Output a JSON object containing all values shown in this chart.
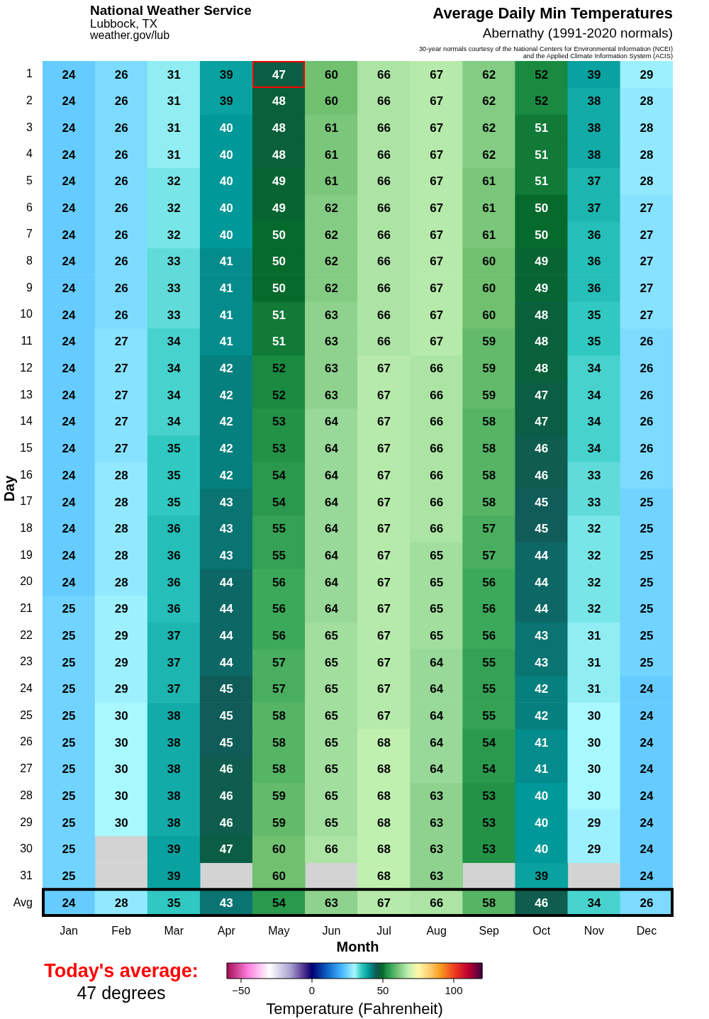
{
  "chart_data": {
    "type": "heatmap",
    "title": "Average Daily Min Temperatures",
    "subtitle": "Abernathy (1991-2020 normals)",
    "xlabel": "Month",
    "ylabel": "Day",
    "clabel": "Temperature (Fahrenheit)",
    "categories": [
      "Jan",
      "Feb",
      "Mar",
      "Apr",
      "May",
      "Jun",
      "Jul",
      "Aug",
      "Sep",
      "Oct",
      "Nov",
      "Dec"
    ],
    "y_categories": [
      "1",
      "2",
      "3",
      "4",
      "5",
      "6",
      "7",
      "8",
      "9",
      "10",
      "11",
      "12",
      "13",
      "14",
      "15",
      "16",
      "17",
      "18",
      "19",
      "20",
      "21",
      "22",
      "23",
      "24",
      "25",
      "26",
      "27",
      "28",
      "29",
      "30",
      "31",
      "Avg"
    ],
    "cells": [
      [
        24,
        26,
        31,
        39,
        47,
        60,
        66,
        67,
        62,
        52,
        39,
        29
      ],
      [
        24,
        26,
        31,
        39,
        48,
        60,
        66,
        67,
        62,
        52,
        38,
        28
      ],
      [
        24,
        26,
        31,
        40,
        48,
        61,
        66,
        67,
        62,
        51,
        38,
        28
      ],
      [
        24,
        26,
        31,
        40,
        48,
        61,
        66,
        67,
        62,
        51,
        38,
        28
      ],
      [
        24,
        26,
        32,
        40,
        49,
        61,
        66,
        67,
        61,
        51,
        37,
        28
      ],
      [
        24,
        26,
        32,
        40,
        49,
        62,
        66,
        67,
        61,
        50,
        37,
        27
      ],
      [
        24,
        26,
        32,
        40,
        50,
        62,
        66,
        67,
        61,
        50,
        36,
        27
      ],
      [
        24,
        26,
        33,
        41,
        50,
        62,
        66,
        67,
        60,
        49,
        36,
        27
      ],
      [
        24,
        26,
        33,
        41,
        50,
        62,
        66,
        67,
        60,
        49,
        36,
        27
      ],
      [
        24,
        26,
        33,
        41,
        51,
        63,
        66,
        67,
        60,
        48,
        35,
        27
      ],
      [
        24,
        27,
        34,
        41,
        51,
        63,
        66,
        67,
        59,
        48,
        35,
        26
      ],
      [
        24,
        27,
        34,
        42,
        52,
        63,
        67,
        66,
        59,
        48,
        34,
        26
      ],
      [
        24,
        27,
        34,
        42,
        52,
        63,
        67,
        66,
        59,
        47,
        34,
        26
      ],
      [
        24,
        27,
        34,
        42,
        53,
        64,
        67,
        66,
        58,
        47,
        34,
        26
      ],
      [
        24,
        27,
        35,
        42,
        53,
        64,
        67,
        66,
        58,
        46,
        34,
        26
      ],
      [
        24,
        28,
        35,
        42,
        54,
        64,
        67,
        66,
        58,
        46,
        33,
        26
      ],
      [
        24,
        28,
        35,
        43,
        54,
        64,
        67,
        66,
        58,
        45,
        33,
        25
      ],
      [
        24,
        28,
        36,
        43,
        55,
        64,
        67,
        66,
        57,
        45,
        32,
        25
      ],
      [
        24,
        28,
        36,
        43,
        55,
        64,
        67,
        65,
        57,
        44,
        32,
        25
      ],
      [
        24,
        28,
        36,
        44,
        56,
        64,
        67,
        65,
        56,
        44,
        32,
        25
      ],
      [
        25,
        29,
        36,
        44,
        56,
        64,
        67,
        65,
        56,
        44,
        32,
        25
      ],
      [
        25,
        29,
        37,
        44,
        56,
        65,
        67,
        65,
        56,
        43,
        31,
        25
      ],
      [
        25,
        29,
        37,
        44,
        57,
        65,
        67,
        64,
        55,
        43,
        31,
        25
      ],
      [
        25,
        29,
        37,
        45,
        57,
        65,
        67,
        64,
        55,
        42,
        31,
        24
      ],
      [
        25,
        30,
        38,
        45,
        58,
        65,
        67,
        64,
        55,
        42,
        30,
        24
      ],
      [
        25,
        30,
        38,
        45,
        58,
        65,
        68,
        64,
        54,
        41,
        30,
        24
      ],
      [
        25,
        30,
        38,
        46,
        58,
        65,
        68,
        64,
        54,
        41,
        30,
        24
      ],
      [
        25,
        30,
        38,
        46,
        59,
        65,
        68,
        63,
        53,
        40,
        30,
        24
      ],
      [
        25,
        30,
        38,
        46,
        59,
        65,
        68,
        63,
        53,
        40,
        29,
        24
      ],
      [
        25,
        null,
        39,
        47,
        60,
        66,
        68,
        63,
        53,
        40,
        29,
        24
      ],
      [
        25,
        null,
        39,
        null,
        60,
        null,
        68,
        63,
        null,
        39,
        null,
        24
      ],
      [
        24,
        28,
        35,
        43,
        54,
        63,
        67,
        66,
        58,
        46,
        34,
        26
      ]
    ],
    "clim": [
      -60,
      120
    ],
    "cticks": [
      -50,
      0,
      50,
      100
    ],
    "data_labels": true,
    "annotations": [
      "National Weather Service",
      "Lubbock, TX",
      "weather.gov/lub",
      "30-year normals courtesy of the National Centers for Environmental Information (NCEI) and the Applied Climate Information System (ACIS)",
      "Today's average:",
      "47 degrees"
    ]
  }
}
